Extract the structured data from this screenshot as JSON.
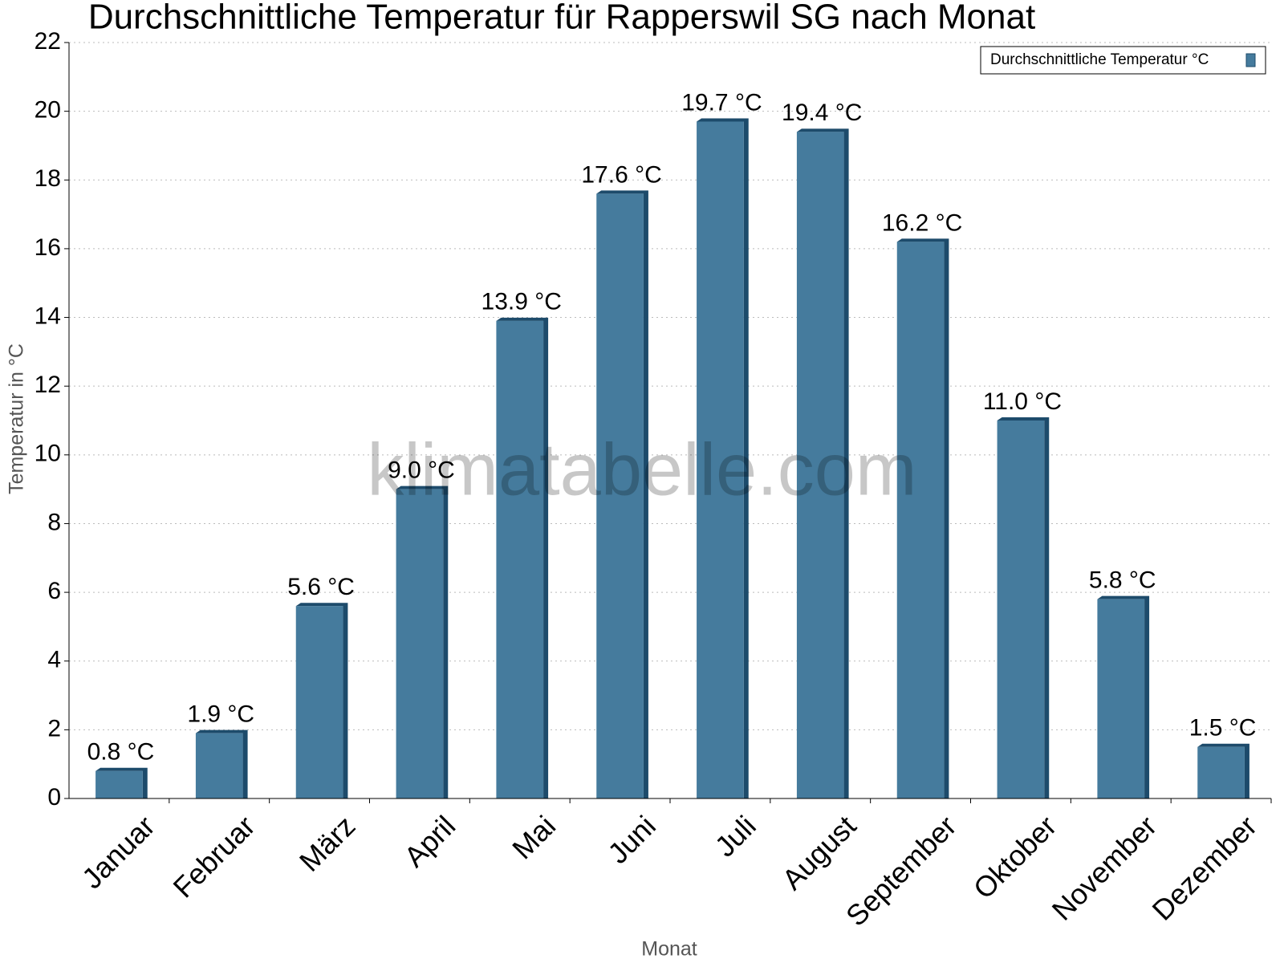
{
  "chart_data": {
    "type": "bar",
    "title": "Durchschnittliche Temperatur für Rapperswil SG nach Monat",
    "x_label": "Monat",
    "y_label": "Temperatur in °C",
    "watermark": "klimatabelle.com",
    "categories": [
      "Januar",
      "Februar",
      "März",
      "April",
      "Mai",
      "Juni",
      "Juli",
      "August",
      "September",
      "Oktober",
      "November",
      "Dezember"
    ],
    "series": [
      {
        "name": "Durchschnittliche Temperatur °C",
        "color": "#457b9d",
        "values": [
          0.8,
          1.9,
          5.6,
          9.0,
          13.9,
          17.6,
          19.7,
          19.4,
          16.2,
          11.0,
          5.8,
          1.5
        ],
        "value_labels": [
          "0.8 °C",
          "1.9 °C",
          "5.6 °C",
          "9.0 °C",
          "13.9 °C",
          "17.6 °C",
          "19.7 °C",
          "19.4 °C",
          "16.2 °C",
          "11.0 °C",
          "5.8 °C",
          "1.5 °C"
        ]
      }
    ],
    "ylim": [
      0,
      22
    ],
    "yticks": [
      0,
      2,
      4,
      6,
      8,
      10,
      12,
      14,
      16,
      18,
      20,
      22
    ],
    "grid": true,
    "legend": "top-right"
  }
}
